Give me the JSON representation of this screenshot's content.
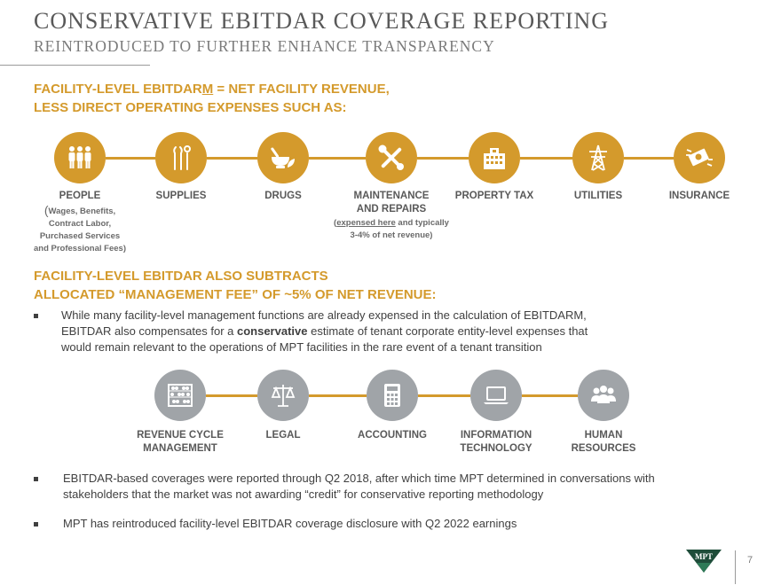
{
  "header": {
    "title": "CONSERVATIVE EBITDAR COVERAGE REPORTING",
    "subtitle": "REINTRODUCED TO FURTHER ENHANCE TRANSPARENCY"
  },
  "section1": {
    "line1_prefix": "FACILITY-LEVEL EBITDAR",
    "line1_underlined": "M",
    "line1_suffix": " = NET FACILITY REVENUE,",
    "line2": "LESS DIRECT OPERATING EXPENSES SUCH AS:",
    "items": [
      {
        "label": "PEOPLE",
        "icon": "people-icon"
      },
      {
        "label": "SUPPLIES",
        "icon": "dental-tools-icon"
      },
      {
        "label": "DRUGS",
        "icon": "mortar-pestle-icon"
      },
      {
        "label1": "MAINTENANCE",
        "label2": "AND REPAIRS",
        "icon": "wrench-screwdriver-icon"
      },
      {
        "label": "PROPERTY TAX",
        "icon": "building-icon"
      },
      {
        "label": "UTILITIES",
        "icon": "power-tower-icon"
      },
      {
        "label": "INSURANCE",
        "icon": "insurance-money-icon"
      }
    ],
    "people_note": {
      "open": "(",
      "line1": "Wages, Benefits,",
      "line2": "Contract Labor,",
      "line3": "Purchased Services",
      "line4": "and Professional Fees)"
    },
    "maintenance_note": {
      "open": "(",
      "underlined": "expensed here",
      "rest": " and typically",
      "line2": "3-4% of net revenue)"
    }
  },
  "section2": {
    "line1": "FACILITY-LEVEL EBITDAR ALSO SUBTRACTS",
    "line2": "ALLOCATED “MANAGEMENT FEE” OF ~5% OF NET REVENUE:",
    "bullet": {
      "line1": "While many facility-level management functions are already expensed in the calculation of EBITDARM,",
      "line2_prefix": "EBITDAR also compensates for a ",
      "line2_bold": "conservative",
      "line2_suffix": " estimate of tenant corporate entity-level expenses that",
      "line3": "would remain relevant to the operations of MPT facilities in the rare event of a tenant transition"
    },
    "items": [
      {
        "label1": "REVENUE CYCLE",
        "label2": "MANAGEMENT",
        "icon": "abacus-icon"
      },
      {
        "label": "LEGAL",
        "icon": "scales-icon"
      },
      {
        "label": "ACCOUNTING",
        "icon": "calculator-icon"
      },
      {
        "label1": "INFORMATION",
        "label2": "TECHNOLOGY",
        "icon": "laptop-icon"
      },
      {
        "label1": "HUMAN",
        "label2": "RESOURCES",
        "icon": "group-icon"
      }
    ]
  },
  "bullets": [
    {
      "line1": "EBITDAR-based coverages were reported through Q2 2018, after which time MPT determined in conversations with",
      "line2": "stakeholders that the market was not awarding “credit” for conservative reporting methodology"
    },
    {
      "line1": "MPT has reintroduced facility-level EBITDAR coverage disclosure with Q2 2022 earnings"
    }
  ],
  "footer": {
    "page_number": "7",
    "logo_text": "MPT"
  },
  "colors": {
    "gold": "#D49A2C",
    "gray_circle": "#A0A4A8",
    "dark_green": "#1F4D3A"
  }
}
